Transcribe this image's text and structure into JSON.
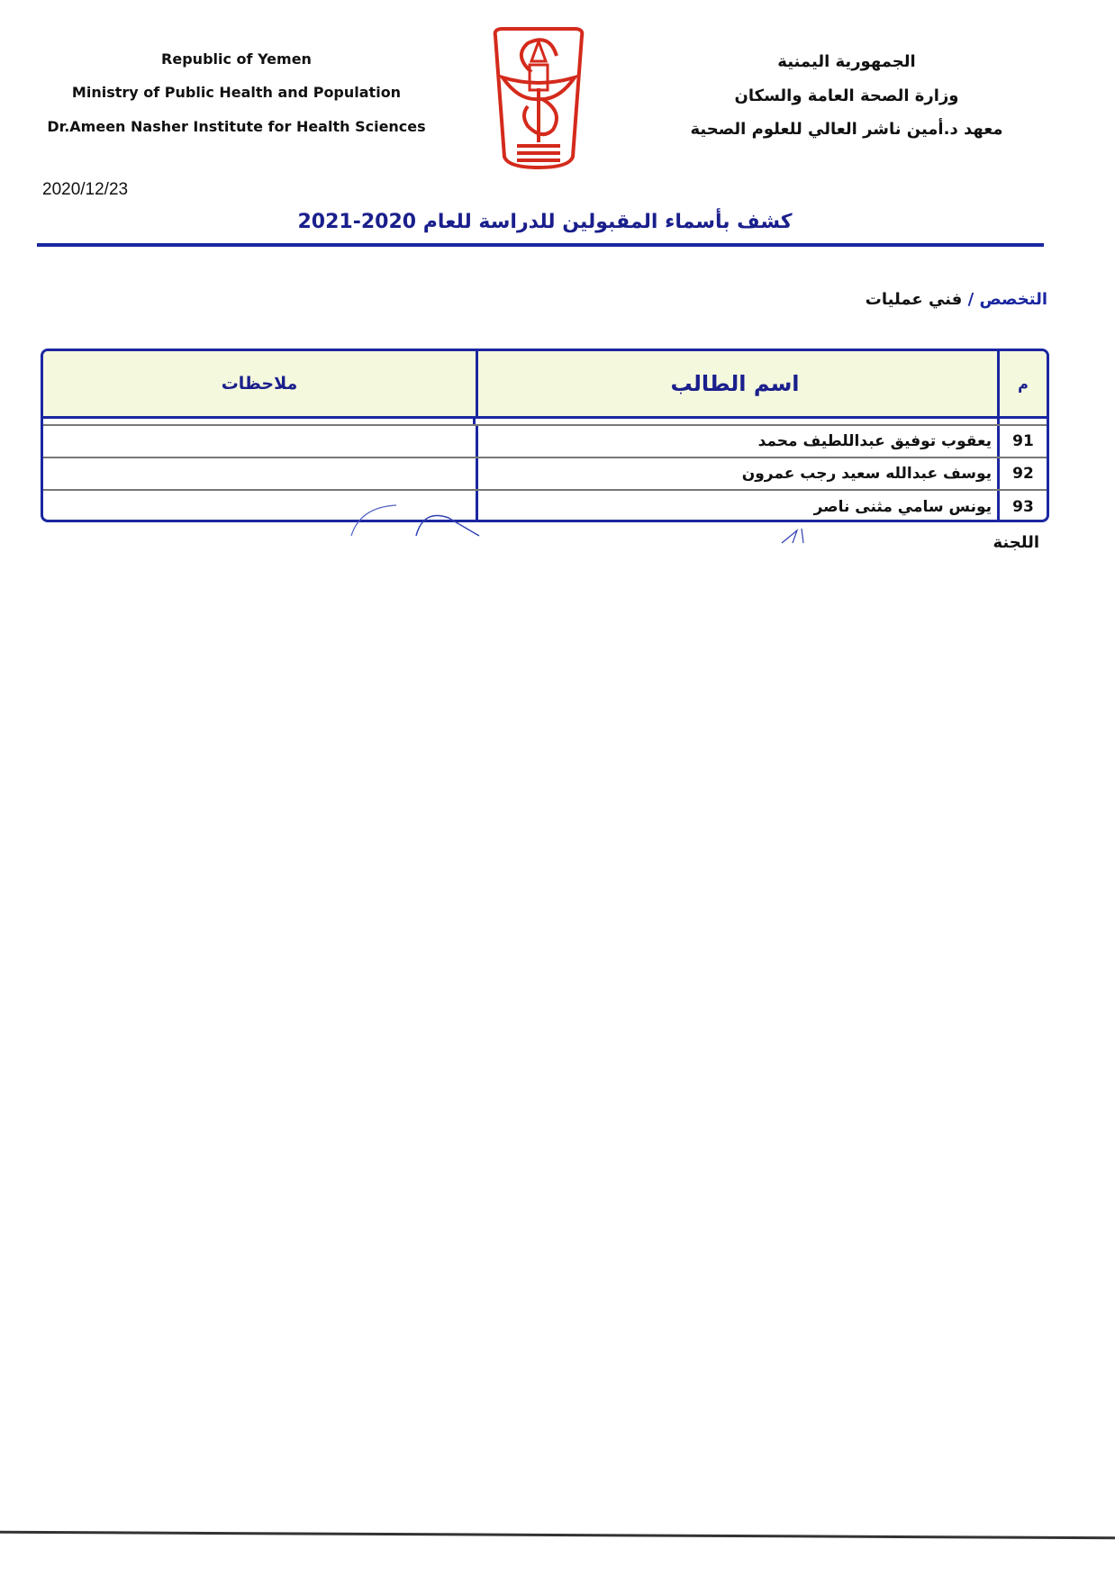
{
  "header": {
    "en": [
      "Republic of Yemen",
      "Ministry of Public Health and Population",
      "Dr.Ameen Nasher Institute for Health Sciences"
    ],
    "ar": [
      "الجمهورية اليمنية",
      "وزارة الصحة العامة والسكان",
      "معهد د.أمين ناشر العالي للعلوم الصحية"
    ],
    "logo_color": "#d42a1c"
  },
  "date": "2020/12/23",
  "title": "كشف بأسماء المقبولين للدراسة للعام 2020-2021",
  "specialty": {
    "label": "التخصص /",
    "value": "فني عمليات"
  },
  "table": {
    "columns": {
      "num": "م",
      "name": "اسم الطالب",
      "notes": "ملاحظات"
    },
    "rows": [
      {
        "num": "91",
        "name": "يعقوب توفيق عبداللطيف محمد",
        "notes": ""
      },
      {
        "num": "92",
        "name": "يوسف عبدالله سعيد رجب عمرون",
        "notes": ""
      },
      {
        "num": "93",
        "name": "يونس سامي مثنى ناصر",
        "notes": ""
      }
    ]
  },
  "committee": "اللجنة",
  "accent_color": "#1a27a0"
}
